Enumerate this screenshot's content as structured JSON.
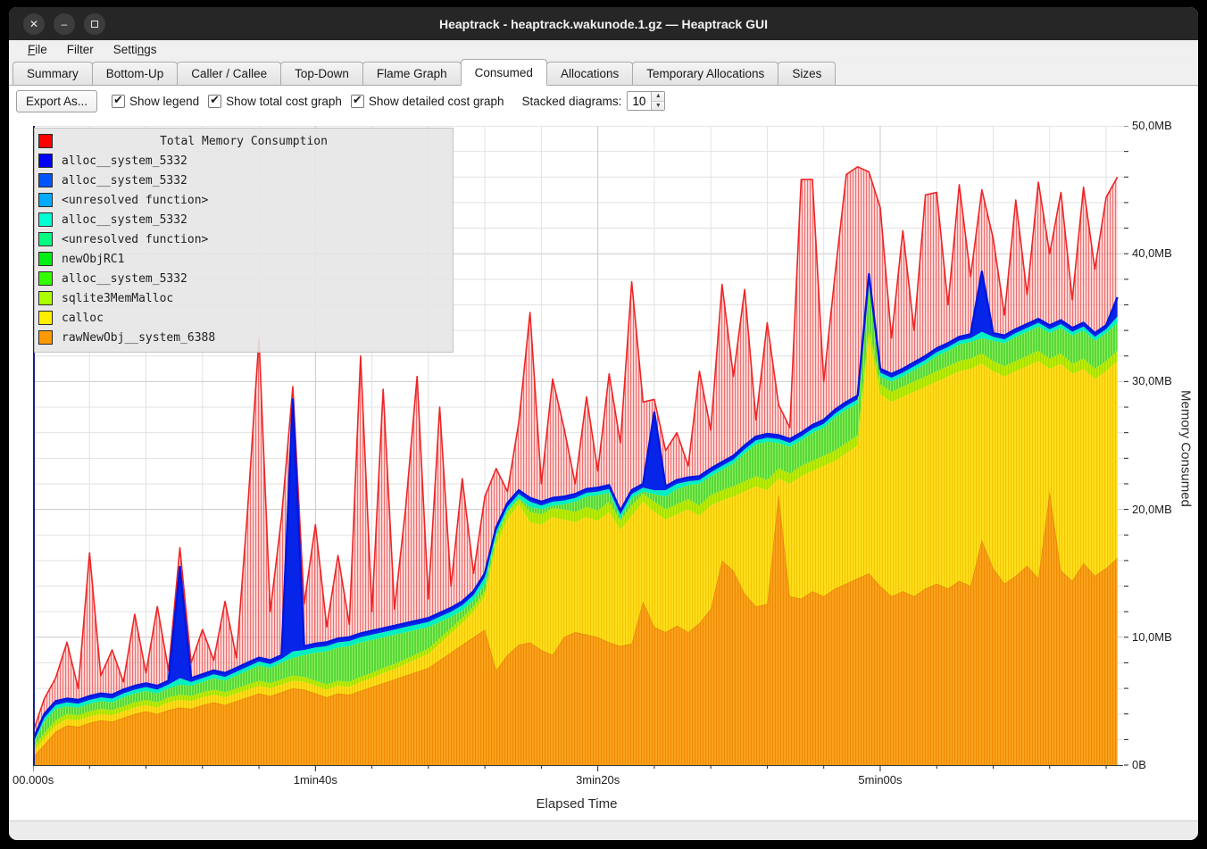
{
  "window": {
    "title": "Heaptrack - heaptrack.wakunode.1.gz — Heaptrack GUI",
    "buttons": {
      "close": "✕",
      "minimize": "–",
      "maximize": "square"
    }
  },
  "menu": {
    "items": [
      {
        "pre": "",
        "accel": "F",
        "post": "ile"
      },
      {
        "pre": "Filter",
        "accel": "",
        "post": ""
      },
      {
        "pre": "Setti",
        "accel": "n",
        "post": "gs"
      }
    ]
  },
  "tabs": {
    "active_index": 5,
    "items": [
      "Summary",
      "Bottom-Up",
      "Caller / Callee",
      "Top-Down",
      "Flame Graph",
      "Consumed",
      "Allocations",
      "Temporary Allocations",
      "Sizes"
    ]
  },
  "toolbar": {
    "export_label": "Export As...",
    "checkboxes": [
      {
        "label": "Show legend",
        "checked": true
      },
      {
        "label": "Show total cost graph",
        "checked": true
      },
      {
        "label": "Show detailed cost graph",
        "checked": true
      }
    ],
    "stacked_label": "Stacked diagrams:",
    "stacked_value": "10"
  },
  "legend": {
    "title_item": {
      "color": "#ff0000",
      "label": "Total Memory Consumption"
    },
    "items": [
      {
        "color": "#0000ff",
        "label": "alloc__system_5332"
      },
      {
        "color": "#0055ff",
        "label": "alloc__system_5332"
      },
      {
        "color": "#00aaff",
        "label": "<unresolved function>"
      },
      {
        "color": "#00ffd5",
        "label": "alloc__system_5332"
      },
      {
        "color": "#00ff80",
        "label": "<unresolved function>"
      },
      {
        "color": "#00ee11",
        "label": "newObjRC1"
      },
      {
        "color": "#33ff00",
        "label": "alloc__system_5332"
      },
      {
        "color": "#aaff00",
        "label": "sqlite3MemMalloc"
      },
      {
        "color": "#ffee00",
        "label": "calloc"
      },
      {
        "color": "#ff9900",
        "label": "rawNewObj__system_6388"
      }
    ]
  },
  "axes": {
    "y_title": "Memory Consumed",
    "x_title": "Elapsed Time",
    "y_labels": [
      {
        "text": "0B",
        "mb": 0
      },
      {
        "text": "10,0MB",
        "mb": 10
      },
      {
        "text": "20,0MB",
        "mb": 20
      },
      {
        "text": "30,0MB",
        "mb": 30
      },
      {
        "text": "40,0MB",
        "mb": 40
      },
      {
        "text": "50,0MB",
        "mb": 50
      }
    ],
    "x_labels": [
      {
        "text": "00.000s",
        "t": 0
      },
      {
        "text": "1min40s",
        "t": 100
      },
      {
        "text": "3min20s",
        "t": 200
      },
      {
        "text": "5min00s",
        "t": 300
      }
    ],
    "y_max_mb": 50,
    "y_minor_step_mb": 2,
    "x_max_s": 386,
    "x_minor_step_s": 20,
    "x_major_step_s": 100
  },
  "colors": {
    "titlebar_bg": "#262626",
    "grid_minor": "#e2e2e2",
    "grid_major": "#c9c9c9",
    "axis_spine_left": "#141e8c",
    "axis_spine_bottom": "#3a3a3a",
    "total_stroke": "#ee2525",
    "total_fill": "rgba(255,150,150,0.38)",
    "total_hatch": "rgba(224,48,48,0.62)",
    "blue_line": "#0016e0"
  },
  "chart_data": {
    "type": "area",
    "stacked": true,
    "unit": "MB",
    "x_unit": "seconds",
    "note": "values are cumulative stack-top heights in MB read from the plot; total is the red detailed-cost envelope",
    "t": [
      0,
      4,
      8,
      12,
      16,
      20,
      24,
      28,
      32,
      36,
      40,
      44,
      48,
      52,
      56,
      60,
      64,
      68,
      72,
      76,
      80,
      84,
      88,
      92,
      96,
      100,
      104,
      108,
      112,
      116,
      120,
      124,
      128,
      132,
      136,
      140,
      144,
      148,
      152,
      156,
      160,
      164,
      168,
      172,
      176,
      180,
      184,
      188,
      192,
      196,
      200,
      204,
      208,
      212,
      216,
      220,
      224,
      228,
      232,
      236,
      240,
      244,
      248,
      252,
      256,
      260,
      264,
      268,
      272,
      276,
      280,
      284,
      288,
      292,
      296,
      300,
      304,
      308,
      312,
      316,
      320,
      324,
      328,
      332,
      336,
      340,
      344,
      348,
      352,
      356,
      360,
      364,
      368,
      372,
      376,
      380,
      384
    ],
    "series": [
      {
        "name": "rawNewObj__system_6388",
        "fill": "#faa21e",
        "hatch": "#ef8b00",
        "edge": "#e07c00",
        "tops": [
          0.6,
          1.6,
          2.6,
          3.1,
          3.0,
          3.3,
          3.5,
          3.4,
          3.7,
          4.0,
          4.2,
          4.0,
          4.3,
          4.5,
          4.4,
          4.7,
          4.9,
          4.7,
          5.0,
          5.3,
          5.6,
          5.4,
          5.7,
          6.0,
          5.9,
          5.6,
          5.3,
          5.6,
          5.5,
          5.8,
          6.1,
          6.4,
          6.7,
          7.0,
          7.3,
          7.6,
          8.2,
          8.8,
          9.4,
          10.0,
          10.6,
          7.4,
          8.6,
          9.4,
          9.6,
          9.0,
          8.6,
          10.0,
          10.4,
          10.2,
          10.0,
          9.6,
          9.3,
          9.5,
          12.8,
          10.8,
          10.4,
          10.9,
          10.4,
          11.1,
          12.2,
          16.0,
          15.2,
          13.4,
          12.4,
          12.6,
          21.2,
          13.2,
          13.0,
          13.6,
          13.2,
          13.8,
          14.2,
          14.6,
          15.0,
          14.0,
          13.2,
          13.6,
          13.2,
          13.8,
          14.2,
          13.8,
          14.4,
          14.0,
          17.6,
          15.4,
          14.2,
          14.8,
          15.6,
          14.6,
          21.4,
          15.2,
          14.4,
          15.8,
          14.8,
          15.4,
          16.2
        ]
      },
      {
        "name": "calloc",
        "fill": "#ffdf1f",
        "hatch": "#f3c600",
        "edge": "",
        "tops": [
          1.0,
          2.1,
          3.1,
          3.6,
          3.5,
          3.8,
          4.0,
          3.9,
          4.2,
          4.5,
          4.7,
          4.5,
          4.9,
          5.1,
          5.0,
          5.3,
          5.5,
          5.3,
          5.6,
          5.9,
          6.2,
          6.0,
          6.3,
          6.6,
          6.5,
          6.2,
          5.9,
          6.2,
          6.1,
          6.5,
          6.8,
          7.2,
          7.5,
          7.9,
          8.3,
          8.7,
          9.5,
          10.3,
          11.1,
          12.0,
          13.2,
          17.2,
          19.2,
          20.4,
          19.0,
          18.8,
          19.4,
          19.2,
          19.0,
          19.4,
          19.1,
          19.8,
          18.4,
          19.5,
          20.6,
          19.8,
          19.2,
          19.6,
          20.0,
          19.5,
          20.3,
          20.7,
          21.0,
          21.4,
          21.8,
          21.5,
          22.4,
          22.0,
          22.6,
          23.0,
          23.4,
          23.8,
          24.4,
          25.0,
          33.5,
          29.0,
          28.4,
          28.8,
          29.2,
          29.6,
          30.0,
          30.4,
          30.8,
          31.0,
          31.4,
          30.8,
          30.4,
          30.8,
          31.2,
          31.6,
          31.0,
          31.4,
          30.6,
          31.0,
          30.2,
          30.8,
          31.6
        ]
      },
      {
        "name": "sqlite3MemMalloc",
        "fill": "#bbee00",
        "hatch": "#a5d800",
        "edge": "",
        "tops": [
          1.4,
          2.5,
          3.5,
          4.0,
          3.9,
          4.2,
          4.4,
          4.3,
          4.6,
          4.9,
          5.1,
          4.9,
          5.3,
          5.5,
          5.4,
          5.7,
          5.9,
          5.7,
          6.0,
          6.3,
          6.6,
          6.4,
          6.7,
          7.0,
          6.9,
          6.6,
          6.3,
          6.6,
          6.5,
          6.9,
          7.2,
          7.6,
          7.9,
          8.3,
          8.7,
          9.1,
          9.9,
          10.7,
          11.5,
          12.4,
          13.6,
          17.8,
          19.8,
          20.8,
          19.8,
          19.6,
          20.1,
          20.0,
          19.8,
          20.2,
          19.9,
          20.6,
          19.1,
          20.3,
          21.2,
          20.6,
          20.0,
          20.4,
          20.8,
          20.3,
          21.1,
          21.5,
          21.8,
          22.2,
          22.6,
          22.3,
          23.2,
          22.8,
          23.4,
          23.8,
          24.2,
          24.6,
          25.2,
          25.8,
          34.3,
          29.8,
          29.2,
          29.6,
          30.0,
          30.4,
          30.8,
          31.2,
          31.6,
          31.8,
          32.2,
          31.6,
          31.2,
          31.6,
          32.0,
          32.4,
          31.8,
          32.2,
          31.4,
          31.8,
          31.0,
          31.6,
          32.4
        ]
      },
      {
        "name": "newObjRC1 / alloc__system_5332 / <unresolved function>",
        "fill": "#55d834",
        "hatch": "#8cec5e",
        "edge": "",
        "tops": [
          1.6,
          3.4,
          4.4,
          4.6,
          4.5,
          4.8,
          5.0,
          4.9,
          5.3,
          5.6,
          5.8,
          5.6,
          6.0,
          6.3,
          6.2,
          6.5,
          6.8,
          6.6,
          7.0,
          7.4,
          7.8,
          7.6,
          8.0,
          8.4,
          8.6,
          8.8,
          8.9,
          9.2,
          9.3,
          9.6,
          9.8,
          10.0,
          10.2,
          10.4,
          10.6,
          10.8,
          11.2,
          11.6,
          12.1,
          12.9,
          14.2,
          18.0,
          19.9,
          20.9,
          20.2,
          20.0,
          20.3,
          20.4,
          20.6,
          21.0,
          21.1,
          21.3,
          19.3,
          20.9,
          21.4,
          21.2,
          21.0,
          21.6,
          21.9,
          22.0,
          22.6,
          23.1,
          23.6,
          24.4,
          25.1,
          25.3,
          25.2,
          24.9,
          25.4,
          26.0,
          26.4,
          27.2,
          27.8,
          28.3,
          37.8,
          30.4,
          30.0,
          30.4,
          30.9,
          31.4,
          32.0,
          32.4,
          32.9,
          33.1,
          33.4,
          33.2,
          33.0,
          33.5,
          33.9,
          34.3,
          33.8,
          34.2,
          33.6,
          34.0,
          33.2,
          33.8,
          34.6
        ]
      },
      {
        "name": "alloc__system_5332 (turquoise)",
        "fill": "#00f0c0",
        "hatch": "",
        "edge": "",
        "tops": [
          1.7,
          3.7,
          4.7,
          4.9,
          4.8,
          5.1,
          5.3,
          5.2,
          5.6,
          5.9,
          6.1,
          5.9,
          6.3,
          6.8,
          6.5,
          6.8,
          7.1,
          6.9,
          7.3,
          7.7,
          8.1,
          7.9,
          8.3,
          8.9,
          9.0,
          9.2,
          9.3,
          9.6,
          9.7,
          10.0,
          10.2,
          10.4,
          10.6,
          10.8,
          11.0,
          11.2,
          11.6,
          12.0,
          12.5,
          13.3,
          14.7,
          18.3,
          20.2,
          21.2,
          20.6,
          20.3,
          20.6,
          20.7,
          20.9,
          21.3,
          21.4,
          21.6,
          19.6,
          21.2,
          21.7,
          21.5,
          21.5,
          22.0,
          22.2,
          22.3,
          22.9,
          23.4,
          23.9,
          24.7,
          25.4,
          25.6,
          25.5,
          25.2,
          25.7,
          26.3,
          26.7,
          27.5,
          28.1,
          28.6,
          38.1,
          30.7,
          30.3,
          30.7,
          31.2,
          31.7,
          32.3,
          32.7,
          33.2,
          33.4,
          33.9,
          33.5,
          33.3,
          33.8,
          34.2,
          34.6,
          34.1,
          34.5,
          33.9,
          34.3,
          33.5,
          34.1,
          35.1
        ]
      },
      {
        "name": "alloc__system_5332 (blue)",
        "fill": "#0725e8",
        "hatch": "",
        "edge": "",
        "tops": [
          2.0,
          4.0,
          5.0,
          5.2,
          5.1,
          5.4,
          5.6,
          5.5,
          5.9,
          6.2,
          6.4,
          6.2,
          6.6,
          15.5,
          6.8,
          7.1,
          7.4,
          7.2,
          7.6,
          8.0,
          8.4,
          8.2,
          8.6,
          28.6,
          9.3,
          9.5,
          9.6,
          9.9,
          10.0,
          10.3,
          10.5,
          10.7,
          10.9,
          11.1,
          11.3,
          11.5,
          11.9,
          12.3,
          12.8,
          13.6,
          15.0,
          18.6,
          20.5,
          21.5,
          20.9,
          20.6,
          20.9,
          21.0,
          21.2,
          21.6,
          21.7,
          21.9,
          19.9,
          21.5,
          22.0,
          27.6,
          21.8,
          22.3,
          22.5,
          22.6,
          23.2,
          23.7,
          24.2,
          25.0,
          25.7,
          25.9,
          25.8,
          25.5,
          26.0,
          26.6,
          27.0,
          27.8,
          28.4,
          28.9,
          38.4,
          31.0,
          30.6,
          31.0,
          31.5,
          32.0,
          32.6,
          33.0,
          33.5,
          33.7,
          38.6,
          33.8,
          33.6,
          34.1,
          34.5,
          34.9,
          34.4,
          34.8,
          34.2,
          34.6,
          33.8,
          34.4,
          36.6
        ]
      }
    ],
    "total": {
      "name": "Total Memory Consumption",
      "values": [
        2.6,
        5.2,
        6.8,
        9.6,
        6.0,
        16.6,
        7.0,
        9.0,
        6.5,
        11.8,
        7.2,
        12.4,
        7.4,
        17.0,
        8.0,
        10.6,
        8.2,
        12.8,
        8.4,
        20.0,
        33.4,
        12.0,
        19.4,
        29.6,
        12.6,
        18.8,
        10.8,
        16.4,
        11.0,
        32.0,
        12.0,
        29.4,
        12.2,
        20.2,
        30.4,
        13.0,
        28.0,
        14.0,
        22.4,
        15.0,
        21.0,
        23.2,
        21.4,
        26.8,
        35.4,
        22.0,
        30.2,
        26.4,
        22.0,
        28.8,
        23.0,
        30.6,
        25.2,
        37.8,
        28.4,
        28.6,
        24.6,
        26.0,
        23.4,
        30.8,
        26.2,
        37.6,
        30.4,
        37.2,
        27.0,
        34.6,
        28.2,
        26.4,
        45.8,
        45.8,
        30.0,
        38.4,
        46.2,
        46.8,
        46.4,
        43.6,
        33.4,
        41.8,
        34.0,
        44.6,
        44.8,
        36.0,
        45.4,
        38.2,
        45.0,
        41.2,
        35.2,
        44.2,
        36.8,
        45.6,
        40.0,
        44.8,
        36.4,
        45.2,
        38.8,
        44.4,
        46.0
      ]
    }
  }
}
